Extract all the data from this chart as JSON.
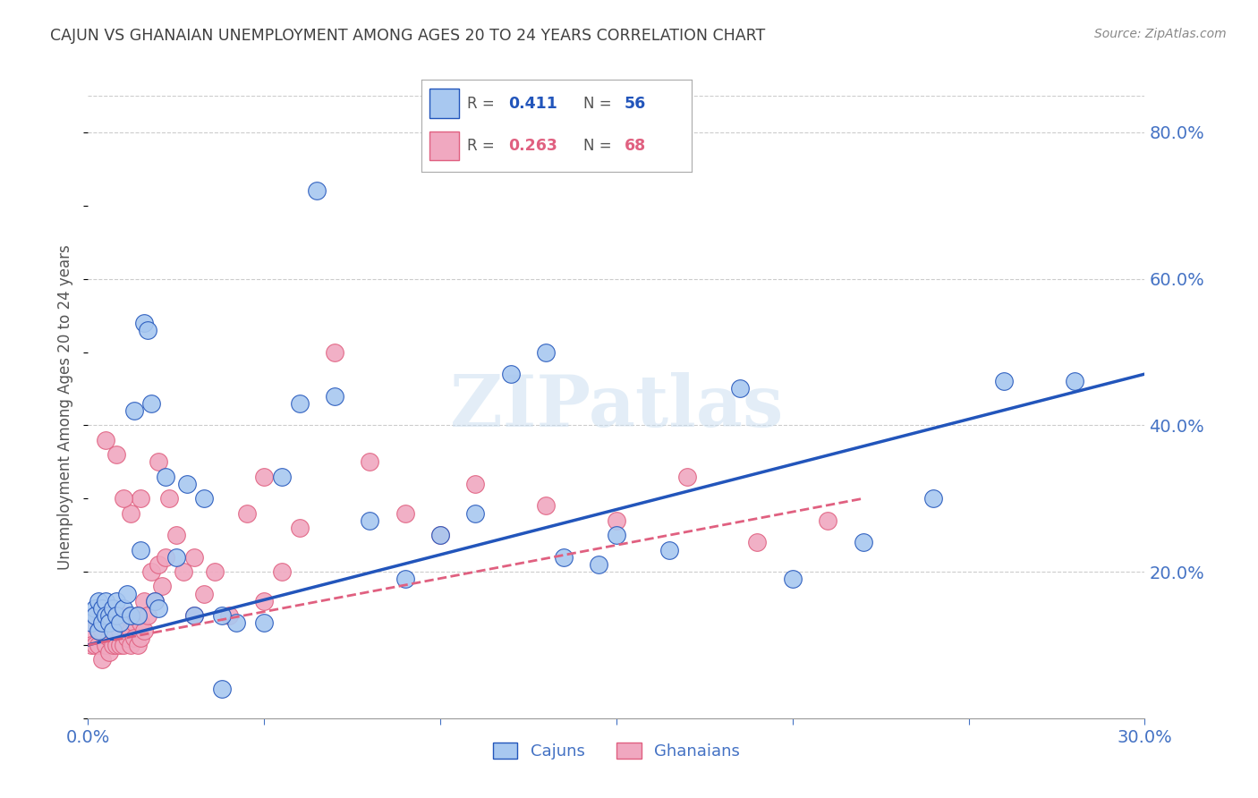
{
  "title": "CAJUN VS GHANAIAN UNEMPLOYMENT AMONG AGES 20 TO 24 YEARS CORRELATION CHART",
  "source": "Source: ZipAtlas.com",
  "ylabel": "Unemployment Among Ages 20 to 24 years",
  "xlim": [
    0.0,
    0.3
  ],
  "ylim": [
    0.0,
    0.85
  ],
  "cajun_color": "#a8c8f0",
  "ghanaian_color": "#f0a8c0",
  "cajun_line_color": "#2255bb",
  "ghanaian_line_color": "#e06080",
  "r_cajun": "0.411",
  "n_cajun": "56",
  "r_ghanaian": "0.263",
  "n_ghanaian": "68",
  "background_color": "#ffffff",
  "grid_color": "#cccccc",
  "title_color": "#404040",
  "axis_label_color": "#4472c4",
  "cajuns_x": [
    0.001,
    0.002,
    0.002,
    0.003,
    0.003,
    0.004,
    0.004,
    0.005,
    0.005,
    0.006,
    0.006,
    0.007,
    0.007,
    0.008,
    0.008,
    0.009,
    0.01,
    0.011,
    0.012,
    0.013,
    0.014,
    0.015,
    0.016,
    0.017,
    0.018,
    0.019,
    0.02,
    0.022,
    0.025,
    0.028,
    0.03,
    0.033,
    0.038,
    0.042,
    0.05,
    0.055,
    0.06,
    0.065,
    0.07,
    0.08,
    0.09,
    0.1,
    0.11,
    0.12,
    0.135,
    0.15,
    0.165,
    0.185,
    0.2,
    0.22,
    0.24,
    0.26,
    0.28,
    0.13,
    0.038,
    0.145
  ],
  "cajuns_y": [
    0.13,
    0.15,
    0.14,
    0.16,
    0.12,
    0.15,
    0.13,
    0.16,
    0.14,
    0.14,
    0.13,
    0.15,
    0.12,
    0.16,
    0.14,
    0.13,
    0.15,
    0.17,
    0.14,
    0.42,
    0.14,
    0.23,
    0.54,
    0.53,
    0.43,
    0.16,
    0.15,
    0.33,
    0.22,
    0.32,
    0.14,
    0.3,
    0.04,
    0.13,
    0.13,
    0.33,
    0.43,
    0.72,
    0.44,
    0.27,
    0.19,
    0.25,
    0.28,
    0.47,
    0.22,
    0.25,
    0.23,
    0.45,
    0.19,
    0.24,
    0.3,
    0.46,
    0.46,
    0.5,
    0.14,
    0.21
  ],
  "ghanaians_x": [
    0.001,
    0.001,
    0.002,
    0.002,
    0.003,
    0.003,
    0.003,
    0.004,
    0.004,
    0.005,
    0.005,
    0.006,
    0.006,
    0.007,
    0.007,
    0.008,
    0.008,
    0.009,
    0.009,
    0.01,
    0.01,
    0.011,
    0.011,
    0.012,
    0.012,
    0.013,
    0.013,
    0.014,
    0.014,
    0.015,
    0.015,
    0.016,
    0.016,
    0.017,
    0.018,
    0.019,
    0.02,
    0.021,
    0.022,
    0.023,
    0.025,
    0.027,
    0.03,
    0.033,
    0.036,
    0.04,
    0.045,
    0.05,
    0.055,
    0.06,
    0.07,
    0.08,
    0.09,
    0.1,
    0.11,
    0.13,
    0.15,
    0.17,
    0.19,
    0.21,
    0.05,
    0.03,
    0.02,
    0.015,
    0.012,
    0.01,
    0.008,
    0.005
  ],
  "ghanaians_y": [
    0.12,
    0.1,
    0.14,
    0.1,
    0.1,
    0.12,
    0.14,
    0.08,
    0.12,
    0.1,
    0.13,
    0.11,
    0.09,
    0.12,
    0.1,
    0.1,
    0.14,
    0.12,
    0.1,
    0.13,
    0.1,
    0.11,
    0.14,
    0.12,
    0.1,
    0.13,
    0.11,
    0.14,
    0.1,
    0.13,
    0.11,
    0.16,
    0.12,
    0.14,
    0.2,
    0.16,
    0.21,
    0.18,
    0.22,
    0.3,
    0.25,
    0.2,
    0.22,
    0.17,
    0.2,
    0.14,
    0.28,
    0.16,
    0.2,
    0.26,
    0.5,
    0.35,
    0.28,
    0.25,
    0.32,
    0.29,
    0.27,
    0.33,
    0.24,
    0.27,
    0.33,
    0.14,
    0.35,
    0.3,
    0.28,
    0.3,
    0.36,
    0.38
  ],
  "cajun_trendline": [
    0.1,
    0.47
  ],
  "ghanaian_trendline_x": [
    0.0,
    0.22
  ],
  "ghanaian_trendline_y": [
    0.1,
    0.3
  ]
}
